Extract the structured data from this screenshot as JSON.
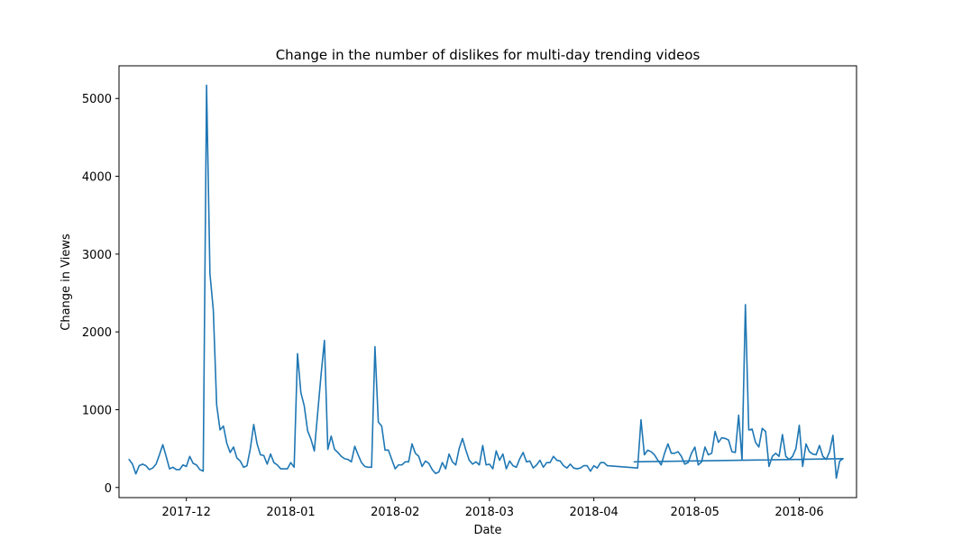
{
  "chart_data": {
    "type": "line",
    "title": "Change in the number of dislikes for multi-day trending videos",
    "xlabel": "Date",
    "ylabel": "Change in Views",
    "xlim": [
      "2017-11-11",
      "2018-06-18"
    ],
    "ylim": [
      -130,
      5420
    ],
    "xticks": [
      "2017-12",
      "2018-01",
      "2018-02",
      "2018-03",
      "2018-04",
      "2018-05",
      "2018-06"
    ],
    "yticks": [
      0,
      1000,
      2000,
      3000,
      4000,
      5000
    ],
    "grid": false,
    "color": "#1f77b4",
    "series": [
      {
        "x": [
          "2017-11-14",
          "2017-11-15",
          "2017-11-16",
          "2017-11-17",
          "2017-11-18",
          "2017-11-19",
          "2017-11-20",
          "2017-11-21",
          "2017-11-22",
          "2017-11-23",
          "2017-11-24",
          "2017-11-25",
          "2017-11-26",
          "2017-11-27",
          "2017-11-28",
          "2017-11-29",
          "2017-11-30",
          "2017-12-01",
          "2017-12-02",
          "2017-12-03",
          "2017-12-04",
          "2017-12-05",
          "2017-12-06",
          "2017-12-07",
          "2017-12-08",
          "2017-12-09",
          "2017-12-10",
          "2017-12-11",
          "2017-12-12",
          "2017-12-13",
          "2017-12-14",
          "2017-12-15",
          "2017-12-16",
          "2017-12-17",
          "2017-12-18",
          "2017-12-19",
          "2017-12-20",
          "2017-12-21",
          "2017-12-22",
          "2017-12-23",
          "2017-12-24",
          "2017-12-25",
          "2017-12-26",
          "2017-12-27",
          "2017-12-28",
          "2017-12-29",
          "2017-12-30",
          "2017-12-31",
          "2018-01-01",
          "2018-01-02",
          "2018-01-03",
          "2018-01-04",
          "2018-01-05",
          "2018-01-06",
          "2018-01-07",
          "2018-01-08",
          "2018-01-09",
          "2018-01-10",
          "2018-01-11",
          "2018-01-12",
          "2018-01-13",
          "2018-01-14",
          "2018-01-15",
          "2018-01-16",
          "2018-01-17",
          "2018-01-18",
          "2018-01-19",
          "2018-01-20",
          "2018-01-21",
          "2018-01-22",
          "2018-01-23",
          "2018-01-24",
          "2018-01-25",
          "2018-01-26",
          "2018-01-27",
          "2018-01-28",
          "2018-01-29",
          "2018-01-30",
          "2018-01-31",
          "2018-02-01",
          "2018-02-02",
          "2018-02-03",
          "2018-02-04",
          "2018-02-05",
          "2018-02-06",
          "2018-02-07",
          "2018-02-08",
          "2018-02-09",
          "2018-02-10",
          "2018-02-11",
          "2018-02-12",
          "2018-02-13",
          "2018-02-14",
          "2018-02-15",
          "2018-02-16",
          "2018-02-17",
          "2018-02-18",
          "2018-02-19",
          "2018-02-20",
          "2018-02-21",
          "2018-02-22",
          "2018-02-23",
          "2018-02-24",
          "2018-02-25",
          "2018-02-26",
          "2018-02-27",
          "2018-02-28",
          "2018-03-01",
          "2018-03-02",
          "2018-03-03",
          "2018-03-04",
          "2018-03-05",
          "2018-03-06",
          "2018-03-07",
          "2018-03-08",
          "2018-03-09",
          "2018-03-10",
          "2018-03-11",
          "2018-03-12",
          "2018-03-13",
          "2018-03-14",
          "2018-03-15",
          "2018-03-16",
          "2018-03-17",
          "2018-03-18",
          "2018-03-19",
          "2018-03-20",
          "2018-03-21",
          "2018-03-22",
          "2018-03-23",
          "2018-03-24",
          "2018-03-25",
          "2018-03-26",
          "2018-03-27",
          "2018-03-28",
          "2018-03-29",
          "2018-03-30",
          "2018-03-31",
          "2018-04-01",
          "2018-04-02",
          "2018-04-03",
          "2018-04-04",
          "2018-04-05",
          "2018-04-14",
          "2018-04-15",
          "2018-04-16",
          "2018-04-17",
          "2018-04-18",
          "2018-04-19",
          "2018-04-20",
          "2018-04-21",
          "2018-04-22",
          "2018-04-23",
          "2018-04-24",
          "2018-04-25",
          "2018-04-26",
          "2018-04-27",
          "2018-04-28",
          "2018-04-29",
          "2018-04-30",
          "2018-05-01",
          "2018-05-02",
          "2018-05-03",
          "2018-05-04",
          "2018-05-05",
          "2018-05-06",
          "2018-05-07",
          "2018-05-08",
          "2018-05-09",
          "2018-05-10",
          "2018-05-11",
          "2018-05-12",
          "2018-05-13",
          "2018-05-14",
          "2018-05-15",
          "2018-05-16",
          "2018-05-17",
          "2018-05-18",
          "2018-05-19",
          "2018-05-20",
          "2018-05-21",
          "2018-05-22",
          "2018-05-23",
          "2018-05-24",
          "2018-05-25",
          "2018-05-26",
          "2018-05-27",
          "2018-05-28",
          "2018-05-29",
          "2018-05-30",
          "2018-05-31",
          "2018-06-01",
          "2018-06-02",
          "2018-06-03",
          "2018-06-04",
          "2018-06-05",
          "2018-06-06",
          "2018-06-07",
          "2018-06-08",
          "2018-06-09",
          "2018-06-10",
          "2018-06-11",
          "2018-06-12",
          "2018-06-13",
          "2018-06-14",
          "2018-04-13",
          "2018-06-14"
        ],
        "y": [
          360,
          300,
          175,
          280,
          300,
          280,
          230,
          250,
          300,
          420,
          550,
          400,
          240,
          260,
          230,
          230,
          290,
          270,
          400,
          310,
          290,
          230,
          210,
          5170,
          2750,
          2280,
          1060,
          740,
          790,
          570,
          450,
          520,
          380,
          340,
          260,
          280,
          500,
          810,
          560,
          420,
          410,
          300,
          430,
          320,
          290,
          240,
          240,
          240,
          320,
          260,
          1720,
          1220,
          1050,
          730,
          620,
          470,
          960,
          1450,
          1890,
          490,
          660,
          490,
          450,
          400,
          370,
          360,
          330,
          530,
          420,
          320,
          270,
          260,
          260,
          1810,
          840,
          790,
          480,
          480,
          360,
          240,
          290,
          290,
          330,
          330,
          560,
          440,
          400,
          270,
          340,
          310,
          230,
          180,
          200,
          320,
          240,
          430,
          330,
          290,
          500,
          630,
          480,
          350,
          300,
          330,
          290,
          540,
          290,
          300,
          240,
          470,
          350,
          430,
          240,
          340,
          280,
          260,
          370,
          450,
          330,
          340,
          250,
          290,
          350,
          260,
          320,
          320,
          400,
          350,
          340,
          280,
          250,
          300,
          250,
          240,
          250,
          280,
          280,
          210,
          280,
          250,
          320,
          320,
          280,
          250,
          870,
          420,
          480,
          460,
          420,
          350,
          290,
          440,
          560,
          440,
          440,
          460,
          400,
          300,
          320,
          440,
          520,
          290,
          330,
          520,
          420,
          440,
          720,
          580,
          640,
          630,
          610,
          460,
          450,
          930,
          350,
          2350,
          740,
          750,
          580,
          520,
          760,
          720,
          270,
          400,
          440,
          400,
          680,
          400,
          360,
          400,
          500,
          800,
          270,
          560,
          460,
          430,
          420,
          540,
          400,
          360,
          460,
          670,
          120,
          340,
          370,
          330,
          370
        ]
      }
    ]
  }
}
